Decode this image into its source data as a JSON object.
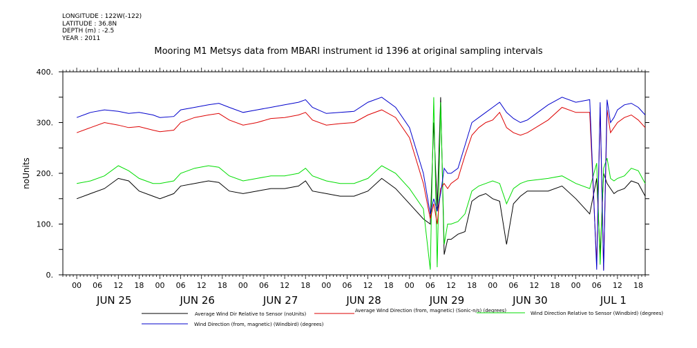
{
  "meta": {
    "longitude": "LONGITUDE : 122W(-122)",
    "latitude": "LATITUDE : 36.8N",
    "depth": "DEPTH (m) : -2.5",
    "year": "YEAR : 2011"
  },
  "chart_data": {
    "type": "line",
    "title": "Mooring M1 Metsys data from MBARI instrument id 1396 at original sampling intervals",
    "xlabel": "",
    "ylabel": "noUnits",
    "ylim": [
      0,
      400
    ],
    "y_ticks": [
      "0.",
      "100.",
      "200.",
      "300.",
      "400."
    ],
    "xlim_hours": [
      -4,
      164
    ],
    "hour_ticks": [
      "00",
      "06",
      "12",
      "18",
      "00",
      "06",
      "12",
      "18",
      "00",
      "06",
      "12",
      "18",
      "00",
      "06",
      "12",
      "18",
      "00",
      "06",
      "12",
      "18",
      "00",
      "06",
      "12",
      "18",
      "00",
      "06",
      "12",
      "18"
    ],
    "date_labels": [
      "JUN 25",
      "JUN 26",
      "JUN 27",
      "JUN 28",
      "JUN 29",
      "JUN 30",
      "JUL  1"
    ],
    "grid": false,
    "legend_position": "bottom",
    "series": [
      {
        "name": "Wind Direction (from, magnetic) (Windbird) (degrees)",
        "color": "#0000cc",
        "x": [
          0,
          4,
          8,
          12,
          15,
          18,
          22,
          24,
          28,
          30,
          34,
          38,
          41,
          44,
          48,
          52,
          56,
          60,
          64,
          66,
          68,
          72,
          76,
          80,
          84,
          88,
          92,
          96,
          100,
          102,
          103,
          104,
          105,
          106,
          107,
          108,
          110,
          112,
          114,
          116,
          118,
          120,
          122,
          124,
          126,
          128,
          130,
          136,
          140,
          144,
          148,
          150,
          151,
          152,
          153,
          154,
          155,
          156,
          158,
          160,
          162,
          164
        ],
        "y": [
          310,
          320,
          325,
          322,
          318,
          320,
          315,
          310,
          312,
          325,
          330,
          335,
          338,
          330,
          320,
          325,
          330,
          335,
          340,
          345,
          330,
          318,
          320,
          322,
          340,
          350,
          330,
          290,
          200,
          120,
          150,
          125,
          160,
          210,
          200,
          200,
          210,
          255,
          300,
          310,
          320,
          330,
          340,
          320,
          308,
          300,
          305,
          335,
          350,
          340,
          345,
          10,
          340,
          8,
          345,
          300,
          310,
          325,
          335,
          338,
          330,
          315
        ]
      },
      {
        "name": "Average Wind Direction (from, magnetic) (Sonic-n/s) (degrees)",
        "color": "#dd0000",
        "x": [
          0,
          4,
          8,
          12,
          15,
          18,
          22,
          24,
          28,
          30,
          34,
          38,
          41,
          44,
          48,
          52,
          56,
          60,
          64,
          66,
          68,
          72,
          76,
          80,
          84,
          88,
          92,
          96,
          100,
          102,
          103,
          104,
          105,
          106,
          107,
          108,
          110,
          112,
          114,
          116,
          118,
          120,
          122,
          124,
          126,
          128,
          130,
          136,
          140,
          144,
          148,
          150,
          151,
          152,
          153,
          154,
          155,
          156,
          158,
          160,
          162,
          164
        ],
        "y": [
          280,
          290,
          300,
          295,
          290,
          292,
          285,
          282,
          285,
          300,
          310,
          315,
          318,
          305,
          295,
          300,
          308,
          310,
          315,
          320,
          305,
          295,
          298,
          300,
          315,
          325,
          310,
          270,
          180,
          110,
          140,
          100,
          170,
          180,
          170,
          180,
          190,
          235,
          275,
          290,
          300,
          305,
          320,
          290,
          280,
          275,
          280,
          305,
          330,
          320,
          320,
          20,
          330,
          10,
          325,
          280,
          290,
          300,
          310,
          315,
          305,
          290
        ]
      },
      {
        "name": "Wind Direction Relative to Sensor (Windbird) (degrees)",
        "color": "#00dd00",
        "x": [
          0,
          4,
          8,
          12,
          15,
          18,
          22,
          24,
          28,
          30,
          34,
          38,
          41,
          44,
          48,
          52,
          56,
          60,
          64,
          66,
          68,
          72,
          76,
          80,
          84,
          88,
          92,
          96,
          100,
          102,
          103,
          104,
          105,
          106,
          107,
          108,
          110,
          112,
          114,
          116,
          118,
          120,
          122,
          124,
          126,
          128,
          130,
          136,
          140,
          144,
          148,
          150,
          151,
          152,
          153,
          154,
          155,
          156,
          158,
          160,
          162,
          164
        ],
        "y": [
          180,
          185,
          195,
          215,
          205,
          190,
          180,
          180,
          185,
          200,
          210,
          215,
          212,
          195,
          185,
          190,
          195,
          195,
          200,
          210,
          195,
          185,
          180,
          180,
          190,
          215,
          200,
          170,
          130,
          10,
          350,
          15,
          340,
          60,
          100,
          100,
          105,
          120,
          165,
          175,
          180,
          185,
          180,
          140,
          170,
          180,
          185,
          190,
          195,
          180,
          170,
          220,
          20,
          210,
          230,
          190,
          185,
          190,
          195,
          210,
          205,
          180
        ]
      },
      {
        "name": "Average Wind Dir Relative to Sensor (noUnits)",
        "color": "#000000",
        "x": [
          0,
          4,
          8,
          12,
          15,
          18,
          22,
          24,
          28,
          30,
          34,
          38,
          41,
          44,
          48,
          52,
          56,
          60,
          64,
          66,
          68,
          72,
          76,
          80,
          84,
          88,
          92,
          96,
          100,
          102,
          103,
          104,
          105,
          106,
          107,
          108,
          110,
          112,
          114,
          116,
          118,
          120,
          122,
          124,
          126,
          128,
          130,
          136,
          140,
          144,
          148,
          150,
          151,
          152,
          153,
          154,
          155,
          156,
          158,
          160,
          162,
          164
        ],
        "y": [
          150,
          160,
          170,
          190,
          185,
          165,
          155,
          150,
          160,
          175,
          180,
          185,
          182,
          165,
          160,
          165,
          170,
          170,
          175,
          185,
          165,
          160,
          155,
          155,
          165,
          190,
          170,
          140,
          110,
          100,
          300,
          130,
          350,
          40,
          70,
          70,
          80,
          85,
          145,
          155,
          160,
          150,
          145,
          60,
          140,
          155,
          165,
          165,
          175,
          150,
          120,
          190,
          40,
          200,
          180,
          170,
          160,
          165,
          170,
          185,
          180,
          155
        ]
      }
    ]
  }
}
